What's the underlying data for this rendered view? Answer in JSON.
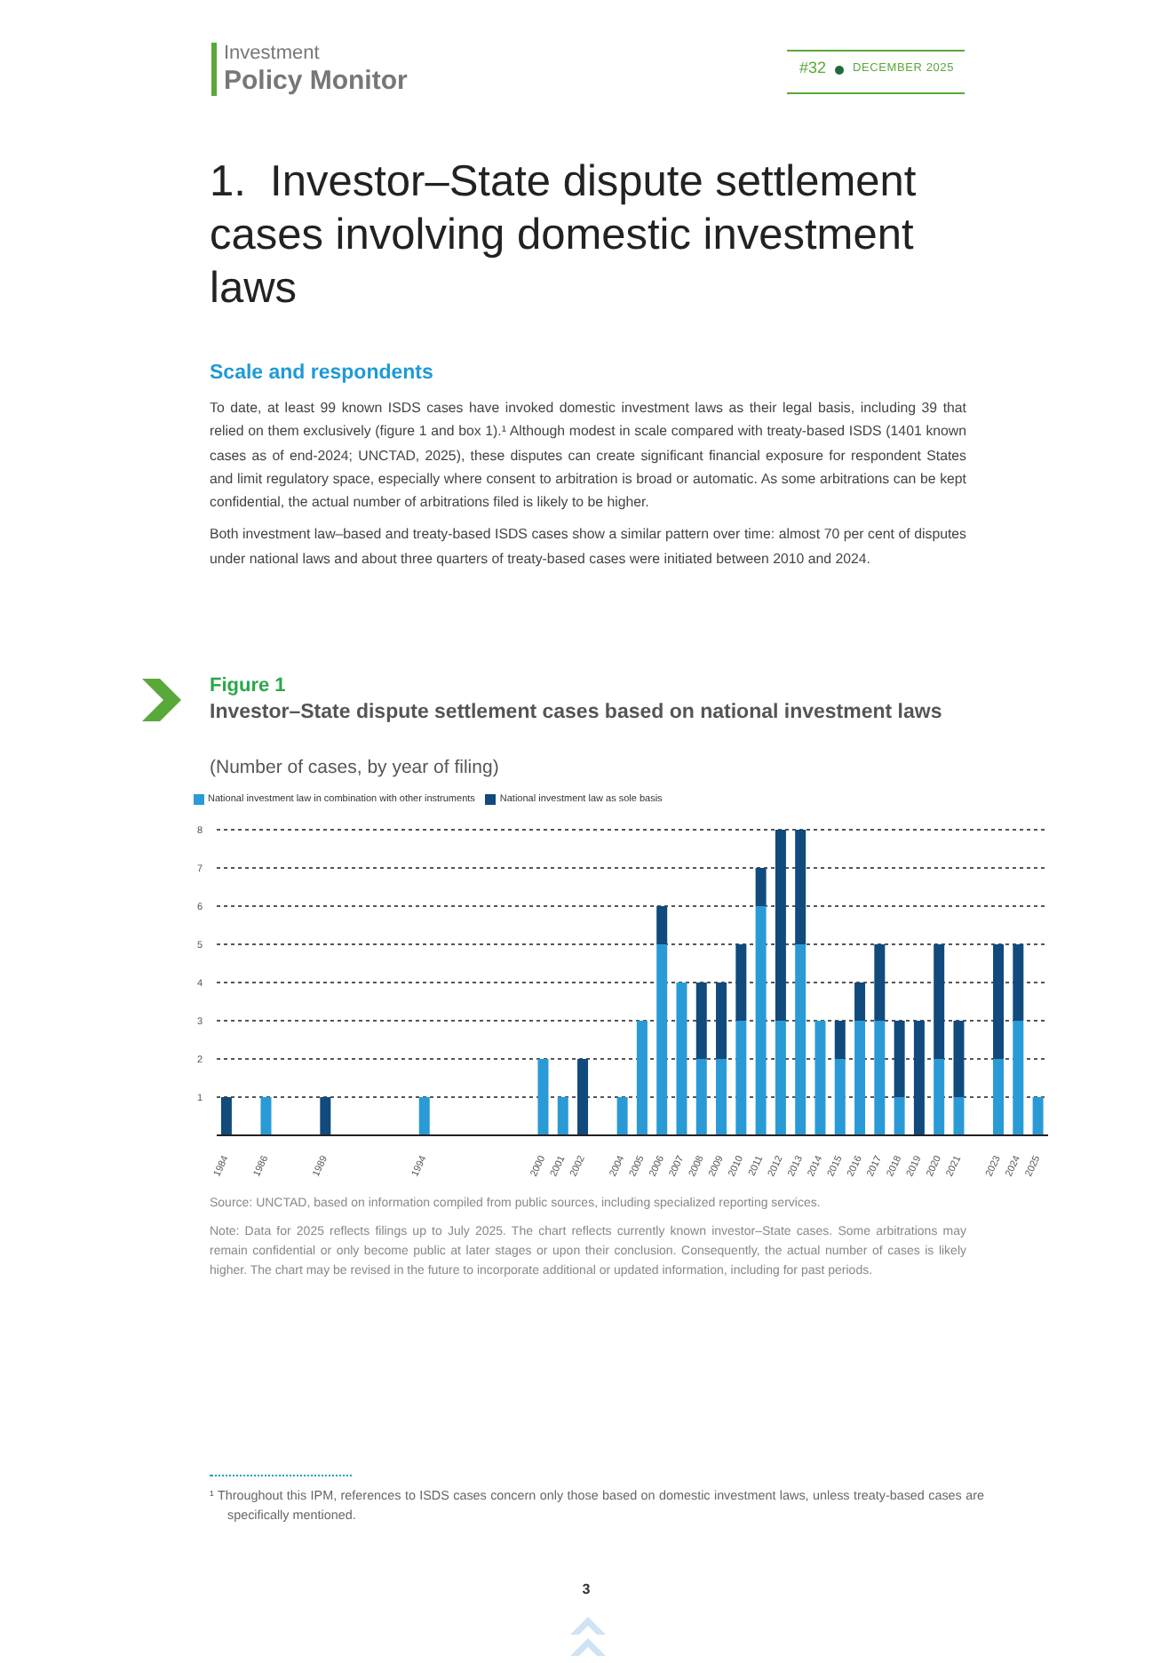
{
  "chart_data": {
    "type": "bar",
    "title": "Investor–State dispute settlement cases based on national investment laws",
    "subtitle": "(Number of cases, by year of filing)",
    "categories": [
      "1984",
      null,
      "1986",
      null,
      null,
      "1989",
      null,
      null,
      null,
      null,
      "1994",
      null,
      null,
      null,
      null,
      null,
      "2000",
      "2001",
      "2002",
      null,
      "2004",
      "2005",
      "2006",
      "2007",
      "2008",
      "2009",
      "2010",
      "2011",
      "2012",
      "2013",
      "2014",
      "2015",
      "2016",
      "2017",
      "2018",
      "2019",
      "2020",
      "2021",
      null,
      "2023",
      "2024",
      "2025"
    ],
    "series": [
      {
        "name": "National investment law in combination with other instruments",
        "color": "#2a9ad6",
        "values": [
          0,
          null,
          1,
          null,
          null,
          0,
          null,
          null,
          null,
          null,
          1,
          null,
          null,
          null,
          null,
          null,
          2,
          1,
          0,
          null,
          1,
          3,
          5,
          4,
          2,
          2,
          3,
          6,
          3,
          5,
          3,
          2,
          3,
          3,
          1,
          0,
          2,
          1,
          null,
          2,
          3,
          1
        ]
      },
      {
        "name": "National investment law as sole basis",
        "color": "#114a7c",
        "values": [
          1,
          null,
          0,
          null,
          null,
          1,
          null,
          null,
          null,
          null,
          0,
          null,
          null,
          null,
          null,
          null,
          0,
          0,
          2,
          null,
          0,
          0,
          1,
          0,
          2,
          2,
          2,
          1,
          5,
          3,
          0,
          1,
          1,
          2,
          2,
          3,
          3,
          2,
          null,
          3,
          2,
          0
        ]
      }
    ],
    "stacked": true,
    "ylim": [
      0,
      8
    ],
    "yticks": [
      1,
      2,
      3,
      4,
      5,
      6,
      7,
      8
    ],
    "grid": "y",
    "legend": "top left",
    "annotations": [
      "Investment",
      "Policy Monitor",
      "#32",
      "DECEMBER 2025",
      "1.  Investor–State dispute settlement cases involving domestic investment laws",
      "Scale and respondents",
      "To date, at least 99 known ISDS cases have invoked domestic investment laws as their legal basis, including 39 that relied on them exclusively (figure 1 and box 1).¹ Although modest in scale compared with treaty-based ISDS (1401 known cases as of end-2024; UNCTAD, 2025), these disputes can create significant financial exposure for respondent States and limit regulatory space, especially where consent to arbitration is broad or automatic. As some arbitrations can be kept confidential, the actual number of arbitrations filed is likely to be higher.",
      "Both investment law–based and treaty-based ISDS cases show a similar pattern over time: almost 70 per cent of disputes under national laws and about three quarters of treaty-based cases were initiated between 2010 and 2024.",
      "Figure 1",
      "Source: UNCTAD, based on information compiled from public sources, including specialized reporting services.",
      "Note: Data for 2025 reflects filings up to July 2025. The chart reflects currently known investor–State cases. Some arbitrations may remain confidential or only become public at later stages or upon their conclusion. Consequently, the actual number of cases is likely higher. The chart may be revised in the future to incorporate additional or updated information, including for past periods.",
      "¹  Throughout this IPM, references to ISDS cases concern only those based on domestic investment laws, unless treaty-based cases are specifically mentioned.",
      "3"
    ]
  }
}
